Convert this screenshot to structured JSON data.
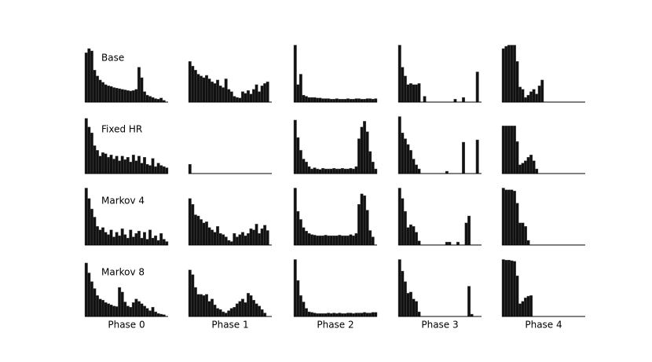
{
  "chart_data": [
    {
      "type": "bar",
      "title": "Base",
      "color": "#111111",
      "values": [
        85,
        92,
        88,
        55,
        45,
        38,
        34,
        30,
        28,
        27,
        25,
        24,
        23,
        22,
        21,
        20,
        19,
        20,
        22,
        60,
        42,
        18,
        12,
        10,
        8,
        6,
        5,
        7,
        3,
        0
      ]
    },
    {
      "type": "bar",
      "color": "#111111",
      "values": [
        70,
        62,
        55,
        48,
        45,
        42,
        46,
        40,
        35,
        32,
        38,
        28,
        25,
        40,
        22,
        18,
        10,
        8,
        7,
        18,
        15,
        20,
        14,
        22,
        30,
        18,
        28,
        32,
        35,
        0
      ]
    },
    {
      "type": "bar",
      "color": "#111111",
      "values": [
        98,
        30,
        48,
        12,
        10,
        8,
        8,
        8,
        7,
        7,
        6,
        6,
        6,
        5,
        5,
        6,
        5,
        5,
        5,
        6,
        5,
        5,
        6,
        6,
        5,
        5,
        6,
        6,
        5,
        6
      ]
    },
    {
      "type": "bar",
      "color": "#111111",
      "values": [
        98,
        60,
        45,
        30,
        32,
        30,
        30,
        32,
        0,
        10,
        0,
        0,
        0,
        0,
        0,
        0,
        0,
        0,
        0,
        0,
        5,
        0,
        0,
        8,
        0,
        0,
        0,
        0,
        52,
        0
      ]
    },
    {
      "type": "bar",
      "color": "#111111",
      "values": [
        92,
        96,
        98,
        98,
        98,
        70,
        26,
        22,
        8,
        12,
        18,
        22,
        14,
        28,
        38,
        0,
        0,
        0,
        0,
        0,
        0,
        0,
        0,
        0,
        0,
        0,
        0,
        0,
        0,
        0
      ]
    },
    {
      "type": "bar",
      "title": "Fixed HR",
      "color": "#111111",
      "values": [
        95,
        80,
        70,
        48,
        40,
        30,
        36,
        34,
        28,
        32,
        25,
        30,
        22,
        30,
        24,
        28,
        20,
        32,
        22,
        30,
        18,
        28,
        16,
        14,
        26,
        12,
        18,
        14,
        12,
        10
      ]
    },
    {
      "type": "bar",
      "color": "#111111",
      "values": [
        16,
        0,
        0,
        0,
        0,
        0,
        0,
        0,
        0,
        0,
        0,
        0,
        0,
        0,
        0,
        0,
        0,
        0,
        0,
        0,
        0,
        0,
        0,
        0,
        0,
        0,
        0,
        0,
        0,
        0
      ]
    },
    {
      "type": "bar",
      "color": "#111111",
      "values": [
        92,
        62,
        40,
        25,
        20,
        12,
        8,
        10,
        8,
        7,
        9,
        8,
        8,
        8,
        9,
        8,
        8,
        9,
        8,
        8,
        9,
        8,
        12,
        60,
        80,
        90,
        72,
        38,
        20,
        8
      ]
    },
    {
      "type": "bar",
      "color": "#111111",
      "values": [
        98,
        70,
        60,
        50,
        40,
        25,
        15,
        8,
        0,
        0,
        0,
        0,
        0,
        0,
        0,
        0,
        0,
        4,
        0,
        0,
        0,
        0,
        0,
        54,
        0,
        0,
        0,
        0,
        58,
        0
      ]
    },
    {
      "type": "bar",
      "color": "#111111",
      "values": [
        82,
        82,
        82,
        82,
        82,
        55,
        15,
        18,
        22,
        28,
        32,
        22,
        8,
        0,
        0,
        0,
        0,
        0,
        0,
        0,
        0,
        0,
        0,
        0,
        0,
        0,
        0,
        0,
        0,
        0
      ]
    },
    {
      "type": "bar",
      "title": "Markov 4",
      "color": "#111111",
      "values": [
        98,
        80,
        62,
        48,
        32,
        26,
        30,
        22,
        18,
        26,
        14,
        22,
        16,
        28,
        18,
        12,
        26,
        14,
        20,
        24,
        12,
        22,
        10,
        26,
        12,
        16,
        8,
        20,
        10,
        6
      ]
    },
    {
      "type": "bar",
      "color": "#111111",
      "values": [
        80,
        70,
        52,
        50,
        44,
        38,
        40,
        30,
        26,
        22,
        32,
        20,
        18,
        14,
        8,
        6,
        20,
        14,
        18,
        22,
        16,
        20,
        28,
        26,
        36,
        20,
        28,
        34,
        25,
        0
      ]
    },
    {
      "type": "bar",
      "color": "#111111",
      "values": [
        98,
        58,
        44,
        30,
        24,
        20,
        18,
        17,
        16,
        16,
        16,
        17,
        16,
        16,
        16,
        16,
        17,
        16,
        16,
        16,
        18,
        16,
        20,
        70,
        88,
        85,
        60,
        25,
        14,
        0
      ]
    },
    {
      "type": "bar",
      "color": "#111111",
      "values": [
        98,
        80,
        58,
        30,
        35,
        32,
        22,
        7,
        0,
        0,
        0,
        0,
        0,
        0,
        0,
        0,
        0,
        5,
        5,
        0,
        0,
        5,
        0,
        0,
        38,
        50,
        0,
        0,
        0,
        0
      ]
    },
    {
      "type": "bar",
      "color": "#111111",
      "values": [
        98,
        95,
        95,
        95,
        93,
        72,
        38,
        38,
        32,
        8,
        0,
        0,
        0,
        0,
        0,
        0,
        0,
        0,
        0,
        0,
        0,
        0,
        0,
        0,
        0,
        0,
        0,
        0,
        0,
        0
      ]
    },
    {
      "type": "bar",
      "title": "Markov 8",
      "xlabel": "Phase 0",
      "color": "#111111",
      "values": [
        92,
        75,
        60,
        48,
        36,
        30,
        28,
        24,
        22,
        20,
        18,
        17,
        50,
        42,
        25,
        18,
        16,
        24,
        30,
        26,
        22,
        18,
        14,
        10,
        16,
        8,
        5,
        4,
        3,
        0
      ]
    },
    {
      "type": "bar",
      "xlabel": "Phase 1",
      "color": "#111111",
      "values": [
        80,
        72,
        50,
        38,
        38,
        36,
        38,
        26,
        30,
        20,
        14,
        12,
        8,
        6,
        10,
        14,
        16,
        22,
        26,
        30,
        24,
        40,
        36,
        28,
        22,
        18,
        12,
        6,
        0,
        0
      ]
    },
    {
      "type": "bar",
      "xlabel": "Phase 2",
      "color": "#111111",
      "values": [
        98,
        62,
        36,
        25,
        14,
        8,
        7,
        6,
        5,
        5,
        5,
        5,
        6,
        5,
        6,
        5,
        6,
        5,
        5,
        6,
        6,
        5,
        6,
        6,
        6,
        7,
        6,
        6,
        7,
        7
      ]
    },
    {
      "type": "bar",
      "xlabel": "Phase 3",
      "color": "#111111",
      "values": [
        98,
        78,
        60,
        40,
        42,
        30,
        26,
        8,
        0,
        0,
        0,
        0,
        0,
        0,
        0,
        0,
        0,
        0,
        0,
        0,
        0,
        0,
        0,
        0,
        0,
        52,
        4,
        0,
        0,
        0
      ]
    },
    {
      "type": "bar",
      "xlabel": "Phase 4",
      "color": "#111111",
      "values": [
        98,
        97,
        97,
        96,
        95,
        70,
        22,
        26,
        32,
        35,
        36,
        0,
        0,
        0,
        0,
        0,
        0,
        0,
        0,
        0,
        0,
        0,
        0,
        0,
        0,
        0,
        0,
        0,
        0,
        0
      ]
    }
  ]
}
